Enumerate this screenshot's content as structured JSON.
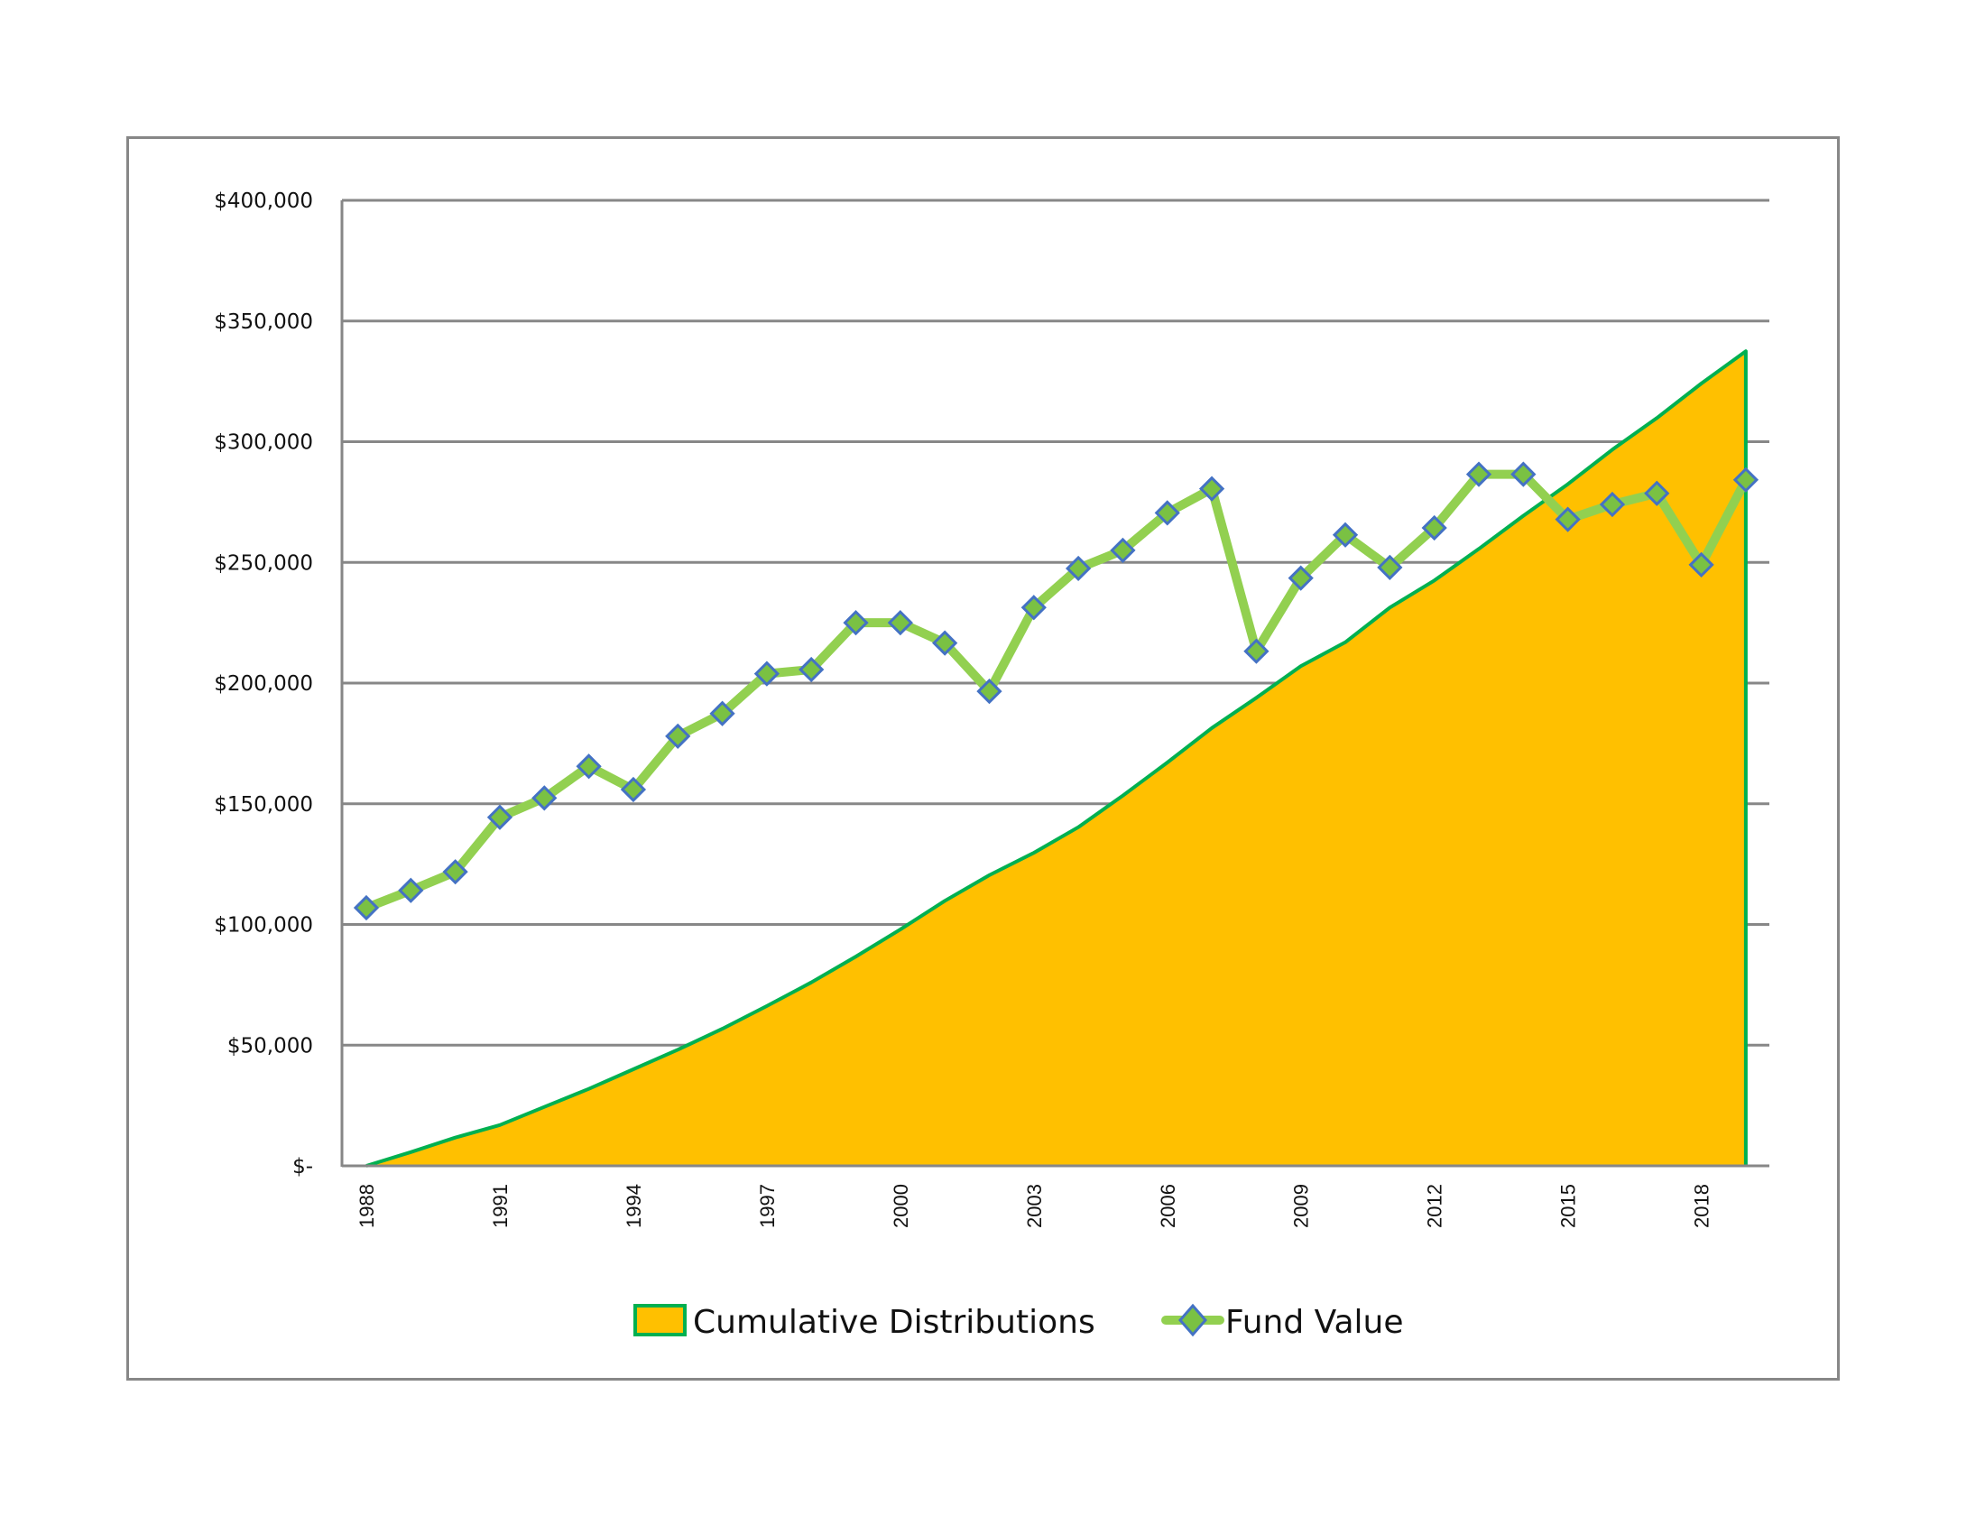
{
  "chart_data": {
    "type": "area+line",
    "title": "",
    "xlabel": "",
    "ylabel": "",
    "ylim": [
      0,
      400000
    ],
    "yticks": [
      0,
      50000,
      100000,
      150000,
      200000,
      250000,
      300000,
      350000,
      400000
    ],
    "ytick_labels": [
      "$-",
      "$50,000",
      "$100,000",
      "$150,000",
      "$200,000",
      "$250,000",
      "$300,000",
      "$350,000",
      "$400,000"
    ],
    "x": [
      1988,
      1989,
      1990,
      1991,
      1992,
      1993,
      1994,
      1995,
      1996,
      1997,
      1998,
      1999,
      2000,
      2001,
      2002,
      2003,
      2004,
      2005,
      2006,
      2007,
      2008,
      2009,
      2010,
      2011,
      2012,
      2013,
      2014,
      2015,
      2016,
      2017,
      2018,
      2019
    ],
    "xtick_labels": [
      "1988",
      "1991",
      "1994",
      "1997",
      "2000",
      "2003",
      "2006",
      "2009",
      "2012",
      "2015",
      "2018"
    ],
    "grid": true,
    "legend_position": "bottom",
    "series": [
      {
        "name": "Cumulative Distributions",
        "type": "area",
        "fill": "#FFC000",
        "stroke": "#00B050",
        "values": [
          0,
          5700,
          11700,
          16900,
          24400,
          31900,
          40000,
          48100,
          56800,
          66200,
          76000,
          86700,
          97900,
          109800,
          120400,
          129700,
          140300,
          153400,
          167100,
          181400,
          193900,
          207000,
          216900,
          231300,
          242500,
          255600,
          269300,
          282400,
          296700,
          309800,
          324100,
          337500
        ]
      },
      {
        "name": "Fund Value",
        "type": "line",
        "stroke": "#92D050",
        "marker": "diamond",
        "marker_fill": "#7AC143",
        "marker_stroke": "#4472C4",
        "values": [
          106900,
          114100,
          121800,
          144400,
          152400,
          165500,
          155900,
          178000,
          187400,
          203900,
          205600,
          225000,
          225000,
          216600,
          196600,
          231300,
          247500,
          255000,
          270500,
          280500,
          213200,
          243500,
          261400,
          247900,
          264300,
          286500,
          286500,
          267800,
          274000,
          278600,
          249000,
          284200
        ]
      }
    ]
  },
  "legend": {
    "items": [
      {
        "label": "Cumulative Distributions",
        "icon": "area-swatch"
      },
      {
        "label": "Fund Value",
        "icon": "line-diamond-marker"
      }
    ]
  },
  "colors": {
    "grid": "#878787",
    "frame": "#878787",
    "area_fill": "#FFC000",
    "area_stroke": "#00B050",
    "line": "#92D050",
    "marker_fill": "#7AC143",
    "marker_stroke": "#4472C4"
  }
}
